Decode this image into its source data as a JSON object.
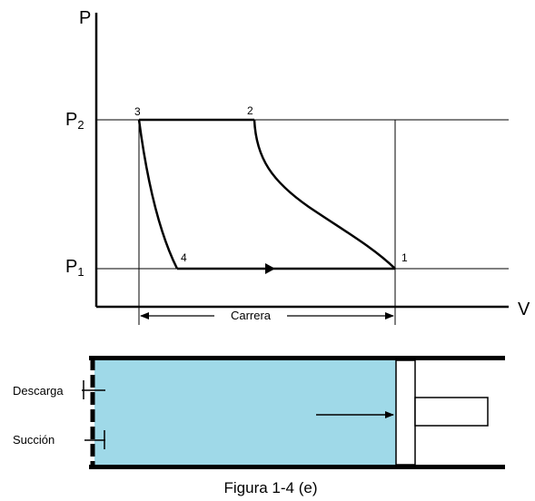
{
  "diagram": {
    "y_axis_label": "P",
    "x_axis_label": "V",
    "pressure_high": {
      "base": "P",
      "subscript": "2"
    },
    "pressure_low": {
      "base": "P",
      "subscript": "1"
    },
    "points": [
      "1",
      "2",
      "3",
      "4"
    ],
    "stroke_label": "Carrera",
    "discharge_label": "Descarga",
    "suction_label": "Succión",
    "caption": "Figura 1-4 (e)",
    "colors": {
      "cylinder_fill": "#9fd9e8",
      "line": "#000000"
    }
  }
}
